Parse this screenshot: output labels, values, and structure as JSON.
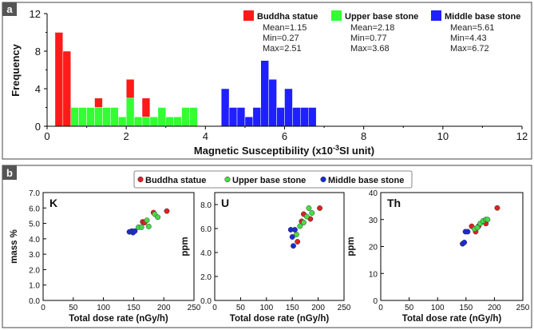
{
  "chart_data": [
    {
      "panel_label": "a",
      "type": "bar",
      "xlabel_main": "Magnetic Susceptibility (x10",
      "xlabel_exp": "-3",
      "xlabel_tail": "SI unit)",
      "ylabel": "Frequency",
      "xlim": [
        0,
        12
      ],
      "ylim": [
        0,
        12
      ],
      "xticks": [
        "0",
        "2",
        "4",
        "6",
        "8",
        "10",
        "12"
      ],
      "yticks": [
        "0",
        "4",
        "8",
        "12"
      ],
      "bin_width": 0.2,
      "series": [
        {
          "name": "Buddha statue",
          "color": "#ff1a1a",
          "mean": "Mean=1.15",
          "min": "Min=0.27",
          "max": "Max=2.51",
          "bins": [
            {
              "x": 0.2,
              "count": 10
            },
            {
              "x": 0.4,
              "count": 8
            },
            {
              "x": 1.0,
              "count": 1
            },
            {
              "x": 1.2,
              "count": 3
            },
            {
              "x": 2.0,
              "count": 5
            },
            {
              "x": 2.4,
              "count": 3
            }
          ]
        },
        {
          "name": "Upper base stone",
          "color": "#33ff33",
          "mean": "Mean=2.18",
          "min": "Min=0.77",
          "max": "Max=3.68",
          "bins": [
            {
              "x": 0.6,
              "count": 2
            },
            {
              "x": 0.8,
              "count": 2
            },
            {
              "x": 1.0,
              "count": 2
            },
            {
              "x": 1.2,
              "count": 2
            },
            {
              "x": 1.4,
              "count": 2
            },
            {
              "x": 1.6,
              "count": 2
            },
            {
              "x": 1.8,
              "count": 1
            },
            {
              "x": 2.0,
              "count": 3
            },
            {
              "x": 2.2,
              "count": 1
            },
            {
              "x": 2.4,
              "count": 1
            },
            {
              "x": 2.6,
              "count": 1
            },
            {
              "x": 2.8,
              "count": 2
            },
            {
              "x": 3.0,
              "count": 1
            },
            {
              "x": 3.2,
              "count": 1
            },
            {
              "x": 3.4,
              "count": 2
            },
            {
              "x": 3.6,
              "count": 2
            }
          ]
        },
        {
          "name": "Middle base stone",
          "color": "#1f1fff",
          "mean": "Mean=5.61",
          "min": "Min=4.43",
          "max": "Max=6.72",
          "bins": [
            {
              "x": 4.4,
              "count": 4
            },
            {
              "x": 4.6,
              "count": 2
            },
            {
              "x": 4.8,
              "count": 2
            },
            {
              "x": 5.0,
              "count": 1
            },
            {
              "x": 5.2,
              "count": 2
            },
            {
              "x": 5.4,
              "count": 7
            },
            {
              "x": 5.6,
              "count": 5
            },
            {
              "x": 5.8,
              "count": 2
            },
            {
              "x": 6.0,
              "count": 4
            },
            {
              "x": 6.2,
              "count": 2
            },
            {
              "x": 6.4,
              "count": 2
            },
            {
              "x": 6.6,
              "count": 2
            }
          ]
        }
      ]
    },
    {
      "panel_label": "b",
      "type": "scatter",
      "legend": [
        {
          "name": "Buddha statue",
          "color": "#dd2222"
        },
        {
          "name": "Upper base stone",
          "color": "#44dd44"
        },
        {
          "name": "Middle base stone",
          "color": "#1a2bd6"
        }
      ],
      "panels": [
        {
          "element": "K",
          "xlabel": "Total dose rate (nGy/h)",
          "ylabel": "mass %",
          "xlim": [
            0,
            250
          ],
          "ylim": [
            0,
            7
          ],
          "xticks": [
            "0",
            "50",
            "100",
            "150",
            "200",
            "250"
          ],
          "yticks": [
            "0.0",
            "1.0",
            "2.0",
            "3.0",
            "4.0",
            "5.0",
            "6.0",
            "7.0"
          ],
          "ytick_values": [
            0,
            1,
            2,
            3,
            4,
            5,
            6,
            7
          ],
          "series": [
            {
              "name": "Buddha statue",
              "points": [
                [
                  165,
                  5.1
                ],
                [
                  168,
                  5.05
                ],
                [
                  183,
                  5.7
                ],
                [
                  205,
                  5.8
                ]
              ]
            },
            {
              "name": "Upper base stone",
              "points": [
                [
                  158,
                  4.75
                ],
                [
                  163,
                  4.75
                ],
                [
                  172,
                  5.2
                ],
                [
                  175,
                  4.8
                ],
                [
                  185,
                  5.6
                ],
                [
                  190,
                  5.4
                ]
              ]
            },
            {
              "name": "Middle base stone",
              "points": [
                [
                  143,
                  4.45
                ],
                [
                  147,
                  4.5
                ],
                [
                  149,
                  4.4
                ],
                [
                  152,
                  4.5
                ]
              ]
            }
          ]
        },
        {
          "element": "U",
          "xlabel": "Total dose rate (nGy/h)",
          "ylabel": "ppm",
          "xlim": [
            0,
            250
          ],
          "ylim": [
            0,
            9
          ],
          "xticks": [
            "0",
            "50",
            "100",
            "150",
            "200",
            "250"
          ],
          "yticks": [
            "0.0",
            "2.0",
            "4.0",
            "6.0",
            "8.0"
          ],
          "ytick_values": [
            0,
            2,
            4,
            6,
            8
          ],
          "series": [
            {
              "name": "Buddha statue",
              "points": [
                [
                  160,
                  4.9
                ],
                [
                  168,
                  6.6
                ],
                [
                  172,
                  7.2
                ],
                [
                  185,
                  6.8
                ],
                [
                  203,
                  7.7
                ]
              ]
            },
            {
              "name": "Upper base stone",
              "points": [
                [
                  158,
                  5.5
                ],
                [
                  165,
                  6.2
                ],
                [
                  172,
                  6.5
                ],
                [
                  178,
                  7.0
                ],
                [
                  182,
                  7.7
                ],
                [
                  188,
                  7.3
                ]
              ]
            },
            {
              "name": "Middle base stone",
              "points": [
                [
                  147,
                  5.9
                ],
                [
                  150,
                  5.3
                ],
                [
                  152,
                  4.55
                ],
                [
                  155,
                  5.9
                ]
              ]
            }
          ]
        },
        {
          "element": "Th",
          "xlabel": "Total dose rate (nGy/h)",
          "ylabel": "ppm",
          "xlim": [
            0,
            250
          ],
          "ylim": [
            0,
            40
          ],
          "xticks": [
            "0",
            "50",
            "100",
            "150",
            "200",
            "250"
          ],
          "yticks": [
            "0",
            "10",
            "20",
            "30",
            "40"
          ],
          "ytick_values": [
            0,
            10,
            20,
            30,
            40
          ],
          "series": [
            {
              "name": "Buddha statue",
              "points": [
                [
                  160,
                  27.5
                ],
                [
                  167,
                  25.5
                ],
                [
                  172,
                  27.5
                ],
                [
                  185,
                  28.5
                ],
                [
                  205,
                  34.3
                ]
              ]
            },
            {
              "name": "Upper base stone",
              "points": [
                [
                  165,
                  26.5
                ],
                [
                  170,
                  27.0
                ],
                [
                  175,
                  28.5
                ],
                [
                  180,
                  29.5
                ],
                [
                  185,
                  30.0
                ],
                [
                  188,
                  30.0
                ]
              ]
            },
            {
              "name": "Middle base stone",
              "points": [
                [
                  144,
                  21.0
                ],
                [
                  147,
                  21.5
                ],
                [
                  149,
                  25.5
                ],
                [
                  153,
                  25.5
                ]
              ]
            }
          ]
        }
      ]
    }
  ]
}
